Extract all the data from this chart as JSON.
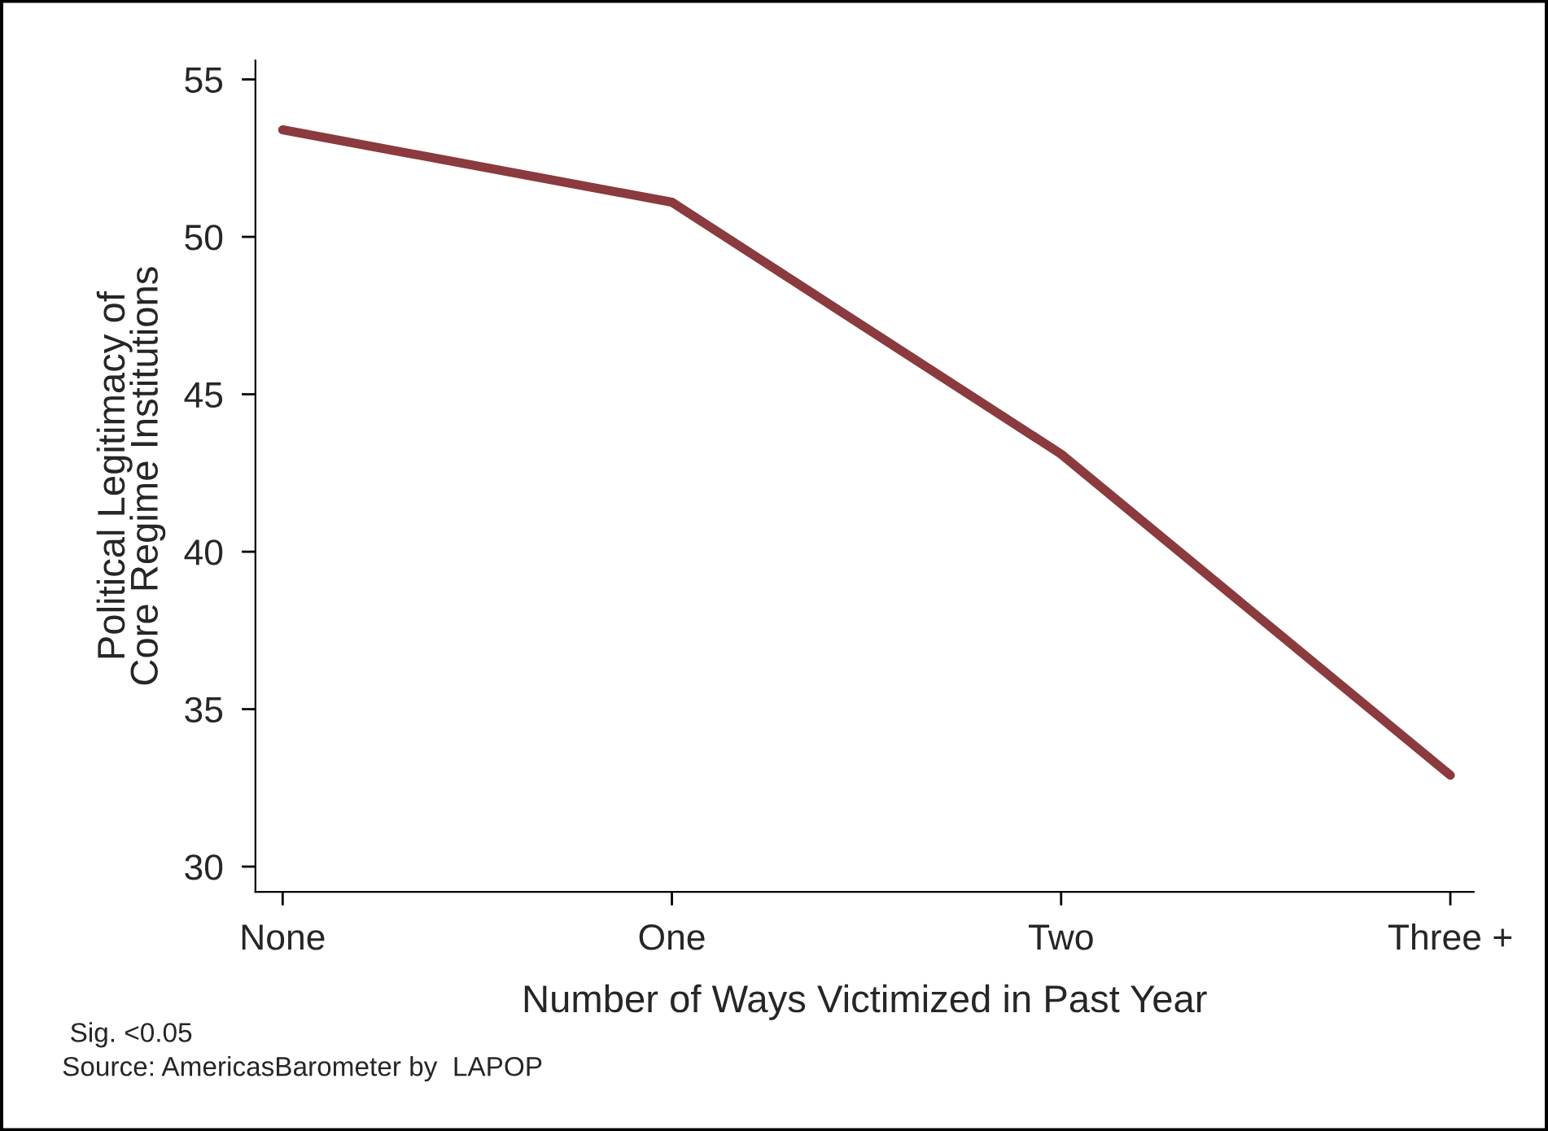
{
  "chart_data": {
    "type": "line",
    "xlabel": "Number of Ways Victimized in Past Year",
    "ylabel": "Political Legitimacy of\nCore Regime Institutions",
    "categories": [
      "None",
      "One",
      "Two",
      "Three +"
    ],
    "series": [
      {
        "color": "#8b3a3e",
        "values": [
          53.4,
          51.1,
          43.1,
          32.9
        ]
      }
    ],
    "ylim": [
      29.2,
      55.6
    ],
    "yticks": [
      30,
      35,
      40,
      45,
      50,
      55
    ],
    "grid": false,
    "legend": false,
    "annotations": [
      "Sig. <0.05",
      "Source: AmericasBarometer by  LAPOP"
    ]
  }
}
